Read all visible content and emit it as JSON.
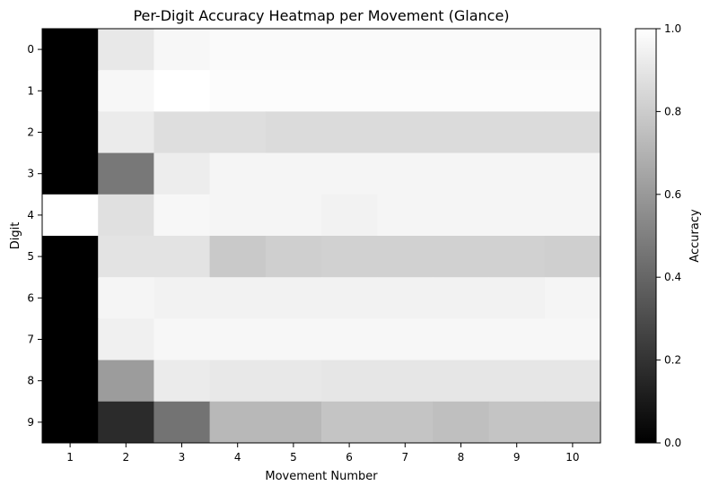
{
  "chart_data": {
    "type": "heatmap",
    "title": "Per-Digit Accuracy Heatmap per Movement (Glance)",
    "xlabel": "Movement Number",
    "ylabel": "Digit",
    "x_categories": [
      "1",
      "2",
      "3",
      "4",
      "5",
      "6",
      "7",
      "8",
      "9",
      "10"
    ],
    "y_categories": [
      "0",
      "1",
      "2",
      "3",
      "4",
      "5",
      "6",
      "7",
      "8",
      "9"
    ],
    "values": [
      [
        0.0,
        0.91,
        0.97,
        0.98,
        0.98,
        0.98,
        0.98,
        0.98,
        0.98,
        0.98
      ],
      [
        0.0,
        0.97,
        1.0,
        0.99,
        0.99,
        0.99,
        0.99,
        0.99,
        0.99,
        0.99
      ],
      [
        0.0,
        0.92,
        0.87,
        0.87,
        0.86,
        0.86,
        0.86,
        0.86,
        0.86,
        0.86
      ],
      [
        0.0,
        0.47,
        0.93,
        0.96,
        0.96,
        0.96,
        0.96,
        0.96,
        0.96,
        0.96
      ],
      [
        1.0,
        0.88,
        0.97,
        0.96,
        0.96,
        0.95,
        0.96,
        0.96,
        0.96,
        0.96
      ],
      [
        0.0,
        0.89,
        0.89,
        0.79,
        0.81,
        0.82,
        0.82,
        0.82,
        0.82,
        0.81
      ],
      [
        0.0,
        0.96,
        0.95,
        0.95,
        0.95,
        0.95,
        0.95,
        0.95,
        0.95,
        0.96
      ],
      [
        0.0,
        0.94,
        0.97,
        0.97,
        0.97,
        0.97,
        0.97,
        0.97,
        0.97,
        0.97
      ],
      [
        0.0,
        0.61,
        0.92,
        0.91,
        0.91,
        0.9,
        0.9,
        0.9,
        0.9,
        0.9
      ],
      [
        0.0,
        0.17,
        0.45,
        0.72,
        0.72,
        0.77,
        0.77,
        0.75,
        0.77,
        0.77
      ]
    ],
    "colorbar": {
      "label": "Accuracy",
      "range": [
        0.0,
        1.0
      ],
      "ticks": [
        "0.0",
        "0.2",
        "0.4",
        "0.6",
        "0.8",
        "1.0"
      ],
      "tick_values": [
        0.0,
        0.2,
        0.4,
        0.6,
        0.8,
        1.0
      ]
    },
    "colormap": "gray",
    "grid": false
  }
}
